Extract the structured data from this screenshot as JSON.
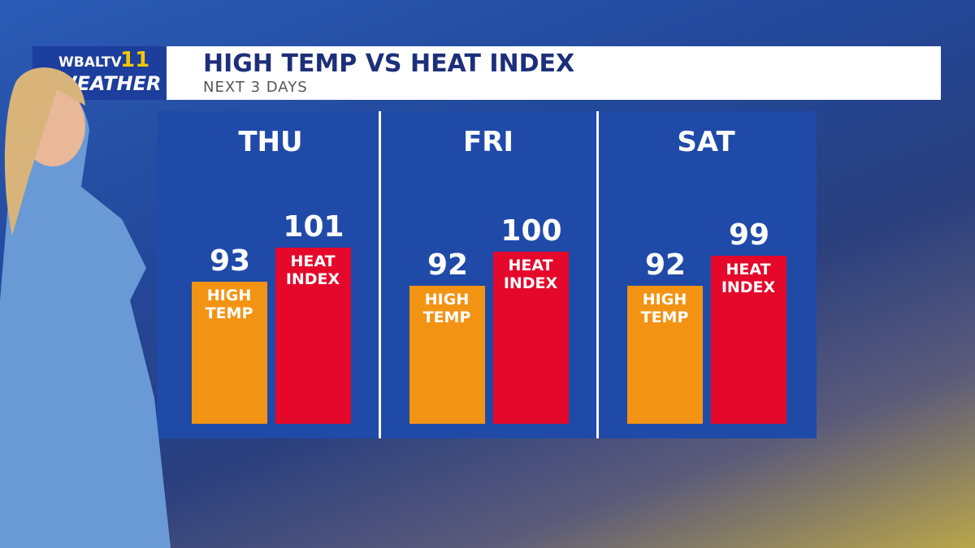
{
  "logo": {
    "station": "WBALTV",
    "number": "11",
    "brand": "WEATHER"
  },
  "chart_data": {
    "type": "bar",
    "title": "HIGH TEMP VS HEAT INDEX",
    "subtitle": "NEXT 3 DAYS",
    "categories": [
      "THU",
      "FRI",
      "SAT"
    ],
    "series": [
      {
        "name": "HIGH TEMP",
        "color": "#f39314",
        "values": [
          93,
          92,
          92
        ]
      },
      {
        "name": "HEAT INDEX",
        "color": "#e5082b",
        "values": [
          101,
          100,
          99
        ]
      }
    ]
  }
}
